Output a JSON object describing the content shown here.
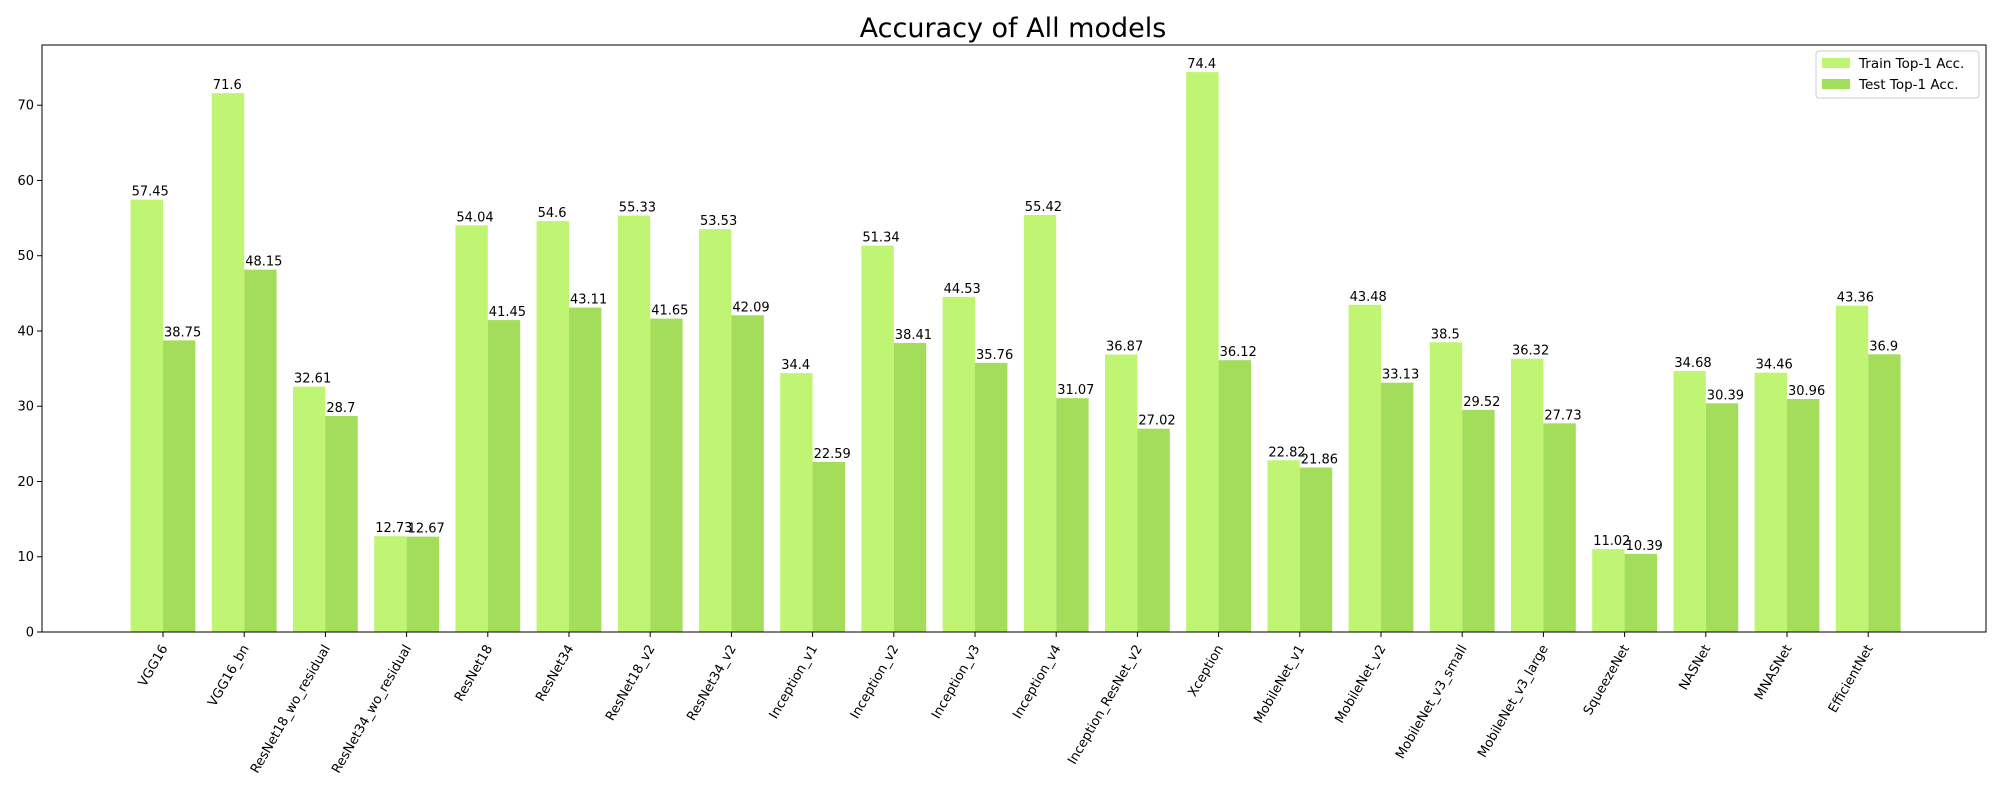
{
  "chart_data": {
    "type": "bar",
    "title": "Accuracy of All models",
    "xlabel": "",
    "ylabel": "",
    "ylim": [
      0,
      78
    ],
    "yticks": [
      0,
      10,
      20,
      30,
      40,
      50,
      60,
      70
    ],
    "grid": false,
    "legend_position": "top-right",
    "categories": [
      "VGG16",
      "VGG16_bn",
      "ResNet18_wo_residual",
      "ResNet34_wo_residual",
      "ResNet18",
      "ResNet34",
      "ResNet18_v2",
      "ResNet34_v2",
      "Inception_v1",
      "Inception_v2",
      "Inception_v3",
      "Inception_v4",
      "Inception_ResNet_v2",
      "Xception",
      "MobileNet_v1",
      "MobileNet_v2",
      "MobileNet_v3_small",
      "MobileNet_v3_large",
      "SqueezeNet",
      "NASNet",
      "MNASNet",
      "EfficientNet"
    ],
    "series": [
      {
        "name": "Train Top-1 Acc.",
        "color": "#c0f573",
        "values": [
          57.45,
          71.6,
          32.61,
          12.73,
          54.04,
          54.6,
          55.33,
          53.53,
          34.4,
          51.34,
          44.53,
          55.42,
          36.87,
          74.4,
          22.82,
          43.48,
          38.5,
          36.32,
          11.02,
          34.68,
          34.46,
          43.36
        ]
      },
      {
        "name": "Test Top-1 Acc.",
        "color": "#a3dd5a",
        "values": [
          38.75,
          48.15,
          28.7,
          12.67,
          41.45,
          43.11,
          41.65,
          42.09,
          22.59,
          38.41,
          35.76,
          31.07,
          27.02,
          36.12,
          21.86,
          33.13,
          29.52,
          27.73,
          10.39,
          30.39,
          30.96,
          36.9
        ]
      }
    ]
  }
}
